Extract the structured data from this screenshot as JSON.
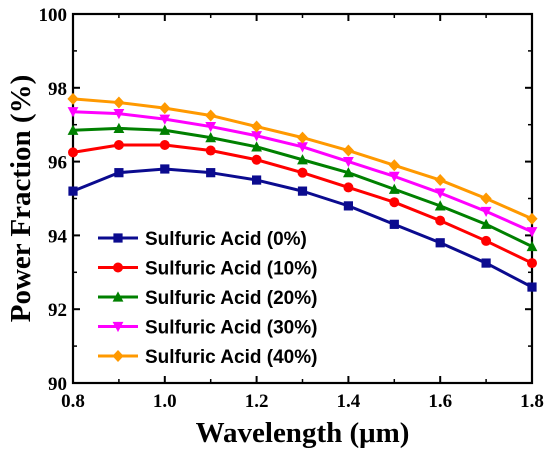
{
  "chart_data": {
    "type": "line",
    "title": "",
    "xlabel": "Wavelength (μm)",
    "ylabel": "Power Fraction (%)",
    "xlim": [
      0.8,
      1.8
    ],
    "ylim": [
      90,
      100
    ],
    "x_ticks": [
      "0.8",
      "1.0",
      "1.2",
      "1.4",
      "1.6",
      "1.8"
    ],
    "y_ticks": [
      "90",
      "92",
      "94",
      "96",
      "98",
      "100"
    ],
    "grid": false,
    "legend_position": "lower-left",
    "x": [
      0.8,
      0.9,
      1.0,
      1.1,
      1.2,
      1.3,
      1.4,
      1.5,
      1.6,
      1.7,
      1.8
    ],
    "series": [
      {
        "name": "Sulfuric Acid (0%)",
        "color": "#0b0b8f",
        "marker": "square",
        "values": [
          95.2,
          95.7,
          95.8,
          95.7,
          95.5,
          95.2,
          94.8,
          94.3,
          93.8,
          93.25,
          92.6
        ]
      },
      {
        "name": "Sulfuric Acid (10%)",
        "color": "#ff0000",
        "marker": "circle",
        "values": [
          96.25,
          96.45,
          96.45,
          96.3,
          96.05,
          95.7,
          95.3,
          94.9,
          94.4,
          93.85,
          93.25
        ]
      },
      {
        "name": "Sulfuric Acid (20%)",
        "color": "#008000",
        "marker": "triangle-up",
        "values": [
          96.85,
          96.9,
          96.85,
          96.65,
          96.4,
          96.05,
          95.7,
          95.25,
          94.8,
          94.3,
          93.7
        ]
      },
      {
        "name": "Sulfuric Acid (30%)",
        "color": "#ff00ff",
        "marker": "triangle-down",
        "values": [
          97.35,
          97.3,
          97.15,
          96.95,
          96.7,
          96.4,
          96.0,
          95.6,
          95.15,
          94.65,
          94.1
        ]
      },
      {
        "name": "Sulfuric Acid (40%)",
        "color": "#ff9900",
        "marker": "diamond",
        "values": [
          97.7,
          97.6,
          97.45,
          97.25,
          96.95,
          96.65,
          96.3,
          95.9,
          95.5,
          95.0,
          94.45
        ]
      }
    ]
  }
}
